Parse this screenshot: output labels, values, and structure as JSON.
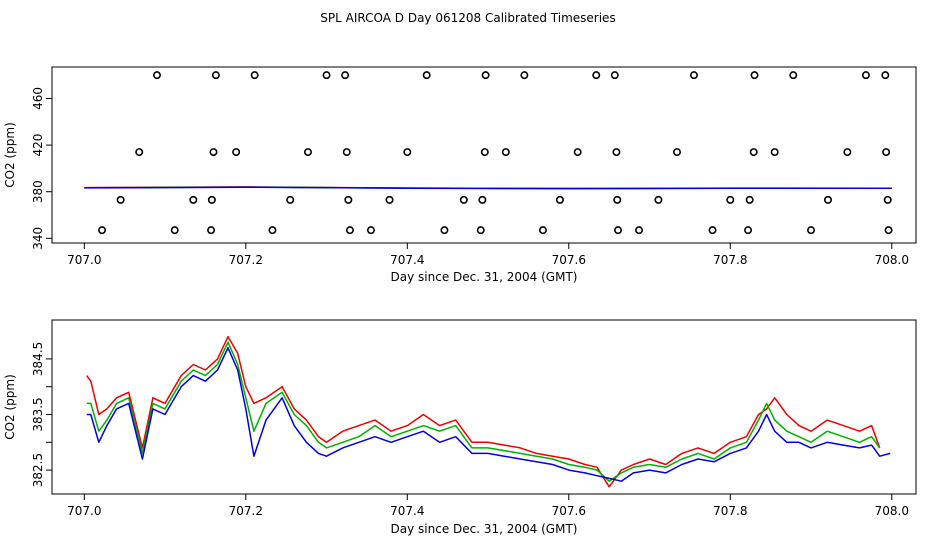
{
  "figure": {
    "title": "SPL AIRCOA D  Day 061208  Calibrated Timeseries"
  },
  "chart_data": [
    {
      "type": "scatter",
      "title": "SPL AIRCOA D  Day 061208  Calibrated Timeseries",
      "xlabel": "Day since Dec. 31, 2004 (GMT)",
      "ylabel": "CO2 (ppm)",
      "xlim": [
        706.96,
        708.03
      ],
      "ylim": [
        336,
        487
      ],
      "xticks": [
        707.0,
        707.2,
        707.4,
        707.6,
        707.8,
        708.0
      ],
      "xtick_labels": [
        "707.0",
        "707.2",
        "707.4",
        "707.6",
        "707.8",
        "708.0"
      ],
      "yticks": [
        340,
        380,
        420,
        460
      ],
      "ytick_labels": [
        "340",
        "380",
        "420",
        "460"
      ],
      "grid": false,
      "series": [
        {
          "name": "calibration points",
          "marker": "open-circle",
          "color": "#000000",
          "x": [
            707.09,
            707.163,
            707.211,
            707.3,
            707.323,
            707.424,
            707.497,
            707.545,
            707.634,
            707.657,
            707.755,
            707.83,
            707.878,
            707.968,
            707.992,
            707.068,
            707.16,
            707.188,
            707.277,
            707.325,
            707.4,
            707.496,
            707.522,
            707.611,
            707.659,
            707.734,
            707.829,
            707.855,
            707.945,
            707.993,
            707.045,
            707.135,
            707.158,
            707.255,
            707.327,
            707.378,
            707.47,
            707.493,
            707.589,
            707.66,
            707.711,
            707.8,
            707.824,
            707.921,
            707.995,
            707.022,
            707.112,
            707.157,
            707.233,
            707.329,
            707.355,
            707.446,
            707.491,
            707.568,
            707.661,
            707.687,
            707.778,
            707.822,
            707.9,
            707.996
          ],
          "y": [
            480,
            480,
            480,
            480,
            480,
            480,
            480,
            480,
            480,
            480,
            480,
            480,
            480,
            480,
            480,
            414,
            414,
            414,
            414,
            414,
            414,
            414,
            414,
            414,
            414,
            414,
            414,
            414,
            414,
            414,
            373,
            373,
            373,
            373,
            373,
            373,
            373,
            373,
            373,
            373,
            373,
            373,
            373,
            373,
            373,
            347,
            347,
            347,
            347,
            347,
            347,
            347,
            347,
            347,
            347,
            347,
            347,
            347,
            347,
            347
          ]
        },
        {
          "name": "red",
          "color": "#ee0000",
          "marker": "line",
          "x": [
            707.0,
            707.2,
            707.4,
            707.6,
            707.8,
            708.0
          ],
          "y": [
            383.5,
            384.1,
            383.2,
            382.8,
            383.1,
            383.0
          ]
        },
        {
          "name": "green",
          "color": "#00b000",
          "marker": "line",
          "x": [
            707.0,
            707.2,
            707.4,
            707.6,
            707.8,
            708.0
          ],
          "y": [
            383.4,
            384.0,
            383.1,
            382.8,
            383.0,
            383.0
          ]
        },
        {
          "name": "blue",
          "color": "#0000dd",
          "marker": "line",
          "x": [
            707.0,
            707.2,
            707.4,
            707.6,
            707.8,
            708.0
          ],
          "y": [
            383.3,
            383.9,
            383.0,
            382.7,
            382.9,
            382.9
          ]
        }
      ]
    },
    {
      "type": "line",
      "title": "",
      "xlabel": "Day since Dec. 31, 2004 (GMT)",
      "ylabel": "CO2 (ppm)",
      "xlim": [
        706.96,
        708.03
      ],
      "ylim": [
        382.07,
        385.2
      ],
      "xticks": [
        707.0,
        707.2,
        707.4,
        707.6,
        707.8,
        708.0
      ],
      "xtick_labels": [
        "707.0",
        "707.2",
        "707.4",
        "707.6",
        "707.8",
        "708.0"
      ],
      "yticks": [
        382.5,
        383.5,
        384.5
      ],
      "ytick_labels": [
        "382.5",
        "383.5",
        "384.5"
      ],
      "yticks_minor": [
        383.0,
        384.0
      ],
      "grid": false,
      "series": [
        {
          "name": "red",
          "color": "#ee0000",
          "x": [
            707.003,
            707.008,
            707.018,
            707.028,
            707.04,
            707.055,
            707.072,
            707.085,
            707.1,
            707.12,
            707.135,
            707.15,
            707.165,
            707.178,
            707.19,
            707.2,
            707.21,
            707.225,
            707.245,
            707.26,
            707.275,
            707.29,
            707.3,
            707.32,
            707.34,
            707.36,
            707.38,
            707.4,
            707.42,
            707.44,
            707.46,
            707.48,
            707.5,
            707.52,
            707.54,
            707.56,
            707.58,
            707.6,
            707.62,
            707.635,
            707.65,
            707.665,
            707.68,
            707.7,
            707.72,
            707.74,
            707.76,
            707.78,
            707.8,
            707.82,
            707.835,
            707.845,
            707.855,
            707.87,
            707.885,
            707.9,
            707.92,
            707.94,
            707.96,
            707.975,
            707.985
          ],
          "y": [
            384.2,
            384.1,
            383.5,
            383.6,
            383.8,
            383.9,
            382.9,
            383.8,
            383.7,
            384.2,
            384.4,
            384.3,
            384.5,
            384.9,
            384.6,
            384.0,
            383.7,
            383.8,
            384.0,
            383.6,
            383.4,
            383.1,
            383.0,
            383.2,
            383.3,
            383.4,
            383.2,
            383.3,
            383.5,
            383.3,
            383.4,
            383.0,
            383.0,
            382.95,
            382.9,
            382.8,
            382.75,
            382.7,
            382.6,
            382.55,
            382.2,
            382.5,
            382.6,
            382.7,
            382.6,
            382.8,
            382.9,
            382.8,
            383.0,
            383.1,
            383.5,
            383.6,
            383.8,
            383.5,
            383.3,
            383.2,
            383.4,
            383.3,
            383.2,
            383.3,
            382.9
          ]
        },
        {
          "name": "green",
          "color": "#00b000",
          "x": [
            707.003,
            707.008,
            707.018,
            707.028,
            707.04,
            707.055,
            707.072,
            707.085,
            707.1,
            707.12,
            707.135,
            707.15,
            707.165,
            707.178,
            707.19,
            707.2,
            707.21,
            707.225,
            707.245,
            707.26,
            707.275,
            707.29,
            707.3,
            707.32,
            707.34,
            707.36,
            707.38,
            707.4,
            707.42,
            707.44,
            707.46,
            707.48,
            707.5,
            707.52,
            707.54,
            707.56,
            707.58,
            707.6,
            707.62,
            707.635,
            707.65,
            707.665,
            707.68,
            707.7,
            707.72,
            707.74,
            707.76,
            707.78,
            707.8,
            707.82,
            707.835,
            707.845,
            707.855,
            707.87,
            707.885,
            707.9,
            707.92,
            707.94,
            707.96,
            707.975,
            707.985
          ],
          "y": [
            383.7,
            383.7,
            383.2,
            383.4,
            383.7,
            383.8,
            382.8,
            383.7,
            383.6,
            384.1,
            384.3,
            384.2,
            384.4,
            384.8,
            384.4,
            383.8,
            383.2,
            383.7,
            383.9,
            383.5,
            383.3,
            383.0,
            382.9,
            383.0,
            383.1,
            383.3,
            383.1,
            383.2,
            383.3,
            383.2,
            383.3,
            382.9,
            382.9,
            382.85,
            382.8,
            382.75,
            382.7,
            382.6,
            382.55,
            382.5,
            382.3,
            382.45,
            382.55,
            382.6,
            382.55,
            382.7,
            382.8,
            382.7,
            382.9,
            383.0,
            383.4,
            383.7,
            383.4,
            383.2,
            383.1,
            383.0,
            383.2,
            383.1,
            383.0,
            383.1,
            382.9
          ]
        },
        {
          "name": "blue",
          "color": "#0000dd",
          "x": [
            707.003,
            707.008,
            707.018,
            707.028,
            707.04,
            707.055,
            707.072,
            707.085,
            707.1,
            707.12,
            707.135,
            707.15,
            707.165,
            707.178,
            707.19,
            707.2,
            707.21,
            707.225,
            707.245,
            707.26,
            707.275,
            707.29,
            707.3,
            707.32,
            707.34,
            707.36,
            707.38,
            707.4,
            707.42,
            707.44,
            707.46,
            707.48,
            707.5,
            707.52,
            707.54,
            707.56,
            707.58,
            707.6,
            707.62,
            707.635,
            707.65,
            707.665,
            707.68,
            707.7,
            707.72,
            707.74,
            707.76,
            707.78,
            707.8,
            707.82,
            707.835,
            707.845,
            707.855,
            707.87,
            707.885,
            707.9,
            707.92,
            707.94,
            707.96,
            707.975,
            707.985,
            707.998
          ],
          "y": [
            383.5,
            383.5,
            383.0,
            383.3,
            383.6,
            383.7,
            382.7,
            383.6,
            383.5,
            384.0,
            384.2,
            384.1,
            384.3,
            384.7,
            384.3,
            383.6,
            382.75,
            383.4,
            383.8,
            383.3,
            383.0,
            382.8,
            382.75,
            382.9,
            383.0,
            383.1,
            383.0,
            383.1,
            383.2,
            383.0,
            383.1,
            382.8,
            382.8,
            382.75,
            382.7,
            382.65,
            382.6,
            382.5,
            382.45,
            382.4,
            382.35,
            382.3,
            382.45,
            382.5,
            382.45,
            382.6,
            382.7,
            382.65,
            382.8,
            382.9,
            383.2,
            383.5,
            383.2,
            383.0,
            383.0,
            382.9,
            383.0,
            382.95,
            382.9,
            382.95,
            382.75,
            382.8
          ]
        }
      ]
    }
  ]
}
